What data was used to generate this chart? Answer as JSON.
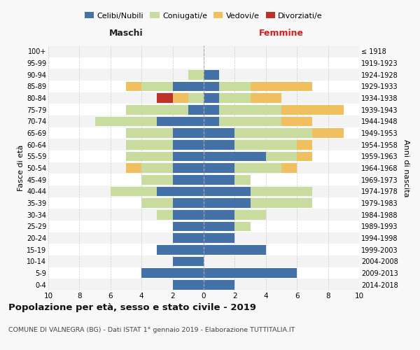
{
  "age_groups": [
    "0-4",
    "5-9",
    "10-14",
    "15-19",
    "20-24",
    "25-29",
    "30-34",
    "35-39",
    "40-44",
    "45-49",
    "50-54",
    "55-59",
    "60-64",
    "65-69",
    "70-74",
    "75-79",
    "80-84",
    "85-89",
    "90-94",
    "95-99",
    "100+"
  ],
  "birth_years": [
    "2014-2018",
    "2009-2013",
    "2004-2008",
    "1999-2003",
    "1994-1998",
    "1989-1993",
    "1984-1988",
    "1979-1983",
    "1974-1978",
    "1969-1973",
    "1964-1968",
    "1959-1963",
    "1954-1958",
    "1949-1953",
    "1944-1948",
    "1939-1943",
    "1934-1938",
    "1929-1933",
    "1924-1928",
    "1919-1923",
    "≤ 1918"
  ],
  "males": {
    "celibi": [
      2,
      4,
      2,
      3,
      2,
      2,
      2,
      2,
      3,
      2,
      2,
      2,
      2,
      2,
      3,
      1,
      0,
      2,
      0,
      0,
      0
    ],
    "coniugati": [
      0,
      0,
      0,
      0,
      0,
      0,
      1,
      2,
      3,
      2,
      2,
      3,
      3,
      3,
      4,
      4,
      1,
      2,
      1,
      0,
      0
    ],
    "vedovi": [
      0,
      0,
      0,
      0,
      0,
      0,
      0,
      0,
      0,
      0,
      1,
      0,
      0,
      0,
      0,
      0,
      1,
      1,
      0,
      0,
      0
    ],
    "divorziati": [
      0,
      0,
      0,
      0,
      0,
      0,
      0,
      0,
      0,
      0,
      0,
      0,
      0,
      0,
      0,
      0,
      1,
      0,
      0,
      0,
      0
    ]
  },
  "females": {
    "nubili": [
      2,
      6,
      0,
      4,
      2,
      2,
      2,
      3,
      3,
      2,
      2,
      4,
      2,
      2,
      1,
      1,
      1,
      1,
      1,
      0,
      0
    ],
    "coniugate": [
      0,
      0,
      0,
      0,
      0,
      1,
      2,
      4,
      4,
      1,
      3,
      2,
      4,
      5,
      4,
      4,
      2,
      2,
      0,
      0,
      0
    ],
    "vedove": [
      0,
      0,
      0,
      0,
      0,
      0,
      0,
      0,
      0,
      0,
      1,
      1,
      1,
      2,
      2,
      4,
      2,
      4,
      0,
      0,
      0
    ],
    "divorziate": [
      0,
      0,
      0,
      0,
      0,
      0,
      0,
      0,
      0,
      0,
      0,
      0,
      0,
      0,
      0,
      0,
      0,
      0,
      0,
      0,
      0
    ]
  },
  "colors": {
    "celibi": "#4472a8",
    "coniugati": "#c8dca0",
    "vedovi": "#f0c060",
    "divorziati": "#c0302a"
  },
  "legend_labels": [
    "Celibi/Nubili",
    "Coniugati/e",
    "Vedovi/e",
    "Divorziati/e"
  ],
  "xlim": 10,
  "title_main": "Popolazione per età, sesso e stato civile - 2019",
  "title_sub": "COMUNE DI VALNEGRA (BG) - Dati ISTAT 1° gennaio 2019 - Elaborazione TUTTITALIA.IT",
  "ylabel_left": "Fasce di età",
  "ylabel_right": "Anni di nascita",
  "header_left": "Maschi",
  "header_right": "Femmine",
  "bg_color": "#f8f8f8",
  "plot_bg": "#ffffff",
  "grid_color": "#cccccc"
}
